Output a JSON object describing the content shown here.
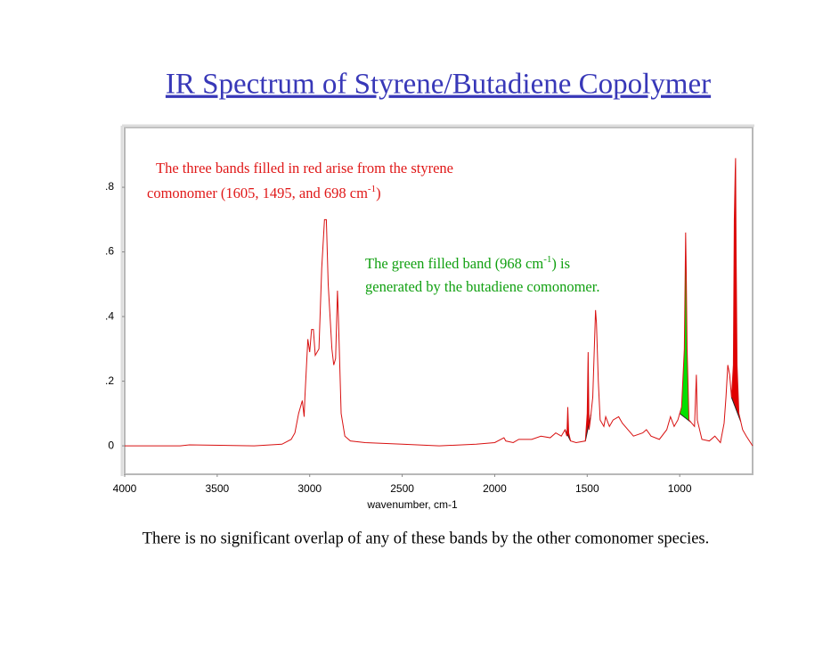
{
  "chart_data": {
    "type": "line",
    "title": "IR Spectrum of  Styrene/Butadiene Copolymer",
    "x_label": "wavenumber, cm-1",
    "caption": "There is no significant overlap of any of these bands by the other comonomer species.",
    "annotations": [
      {
        "color": "#e01818",
        "lines": [
          [
            {
              "text": "The three bands filled in red arise from the styrene"
            }
          ],
          [
            {
              "text": "comonomer (1605, 1495, and 698 cm"
            },
            {
              "text": "-1",
              "superscript": true
            },
            {
              "text": ")"
            }
          ]
        ]
      },
      {
        "color": "#10a010",
        "lines": [
          [
            {
              "text": "The green filled band (968 cm"
            },
            {
              "text": "-1",
              "superscript": true
            },
            {
              "text": ") is"
            }
          ],
          [
            {
              "text": "generated by the butadiene comonomer."
            }
          ]
        ]
      }
    ],
    "xlim": [
      4000,
      606
    ],
    "ylim": [
      -0.088,
      0.985
    ],
    "xticks": [
      4000,
      3500,
      3000,
      2500,
      2000,
      1500,
      1000
    ],
    "yticks": [
      0,
      {
        "value": 0.2,
        "label": ".2"
      },
      {
        "value": 0.4,
        "label": ".4"
      },
      {
        "value": 0.6,
        "label": ".6"
      },
      {
        "value": 0.8,
        "label": ".8"
      }
    ],
    "color": "#d81010",
    "filled_bands": [
      {
        "from": 1620,
        "to": 1590,
        "color": "#e00000"
      },
      {
        "from": 1510,
        "to": 1480,
        "color": "#e00000"
      },
      {
        "from": 1000,
        "to": 940,
        "color": "#00e000"
      },
      {
        "from": 720,
        "to": 670,
        "color": "#e00000"
      }
    ],
    "x": [
      4000,
      3700,
      3650,
      3300,
      3150,
      3100,
      3080,
      3060,
      3040,
      3030,
      3026,
      3010,
      3000,
      2990,
      2980,
      2970,
      2950,
      2935,
      2920,
      2910,
      2900,
      2880,
      2870,
      2860,
      2850,
      2845,
      2830,
      2810,
      2780,
      2700,
      2500,
      2300,
      2100,
      2000,
      1950,
      1940,
      1900,
      1870,
      1800,
      1750,
      1700,
      1670,
      1640,
      1620,
      1610,
      1605,
      1600,
      1590,
      1560,
      1510,
      1500,
      1495,
      1490,
      1485,
      1470,
      1455,
      1450,
      1440,
      1430,
      1410,
      1400,
      1380,
      1360,
      1330,
      1310,
      1280,
      1250,
      1200,
      1180,
      1155,
      1110,
      1070,
      1050,
      1030,
      1010,
      990,
      975,
      968,
      965,
      960,
      950,
      920,
      910,
      905,
      880,
      840,
      810,
      780,
      760,
      750,
      740,
      730,
      720,
      710,
      705,
      700,
      698,
      695,
      690,
      680,
      660,
      640,
      606
    ],
    "values": [
      0,
      0,
      0.003,
      0,
      0.005,
      0.02,
      0.04,
      0.1,
      0.14,
      0.09,
      0.15,
      0.33,
      0.29,
      0.36,
      0.36,
      0.28,
      0.3,
      0.55,
      0.7,
      0.7,
      0.5,
      0.3,
      0.25,
      0.27,
      0.48,
      0.4,
      0.1,
      0.03,
      0.015,
      0.01,
      0.005,
      0,
      0.005,
      0.01,
      0.025,
      0.015,
      0.01,
      0.02,
      0.02,
      0.03,
      0.025,
      0.04,
      0.03,
      0.05,
      0.03,
      0.12,
      0.04,
      0.015,
      0.01,
      0.015,
      0.1,
      0.29,
      0.05,
      0.07,
      0.15,
      0.42,
      0.38,
      0.2,
      0.08,
      0.06,
      0.09,
      0.06,
      0.08,
      0.09,
      0.07,
      0.05,
      0.03,
      0.04,
      0.05,
      0.03,
      0.02,
      0.05,
      0.09,
      0.06,
      0.08,
      0.12,
      0.3,
      0.66,
      0.55,
      0.3,
      0.08,
      0.06,
      0.22,
      0.08,
      0.02,
      0.015,
      0.03,
      0.01,
      0.07,
      0.15,
      0.25,
      0.22,
      0.15,
      0.25,
      0.7,
      0.85,
      0.89,
      0.6,
      0.25,
      0.1,
      0.05,
      0.03,
      0
    ]
  }
}
